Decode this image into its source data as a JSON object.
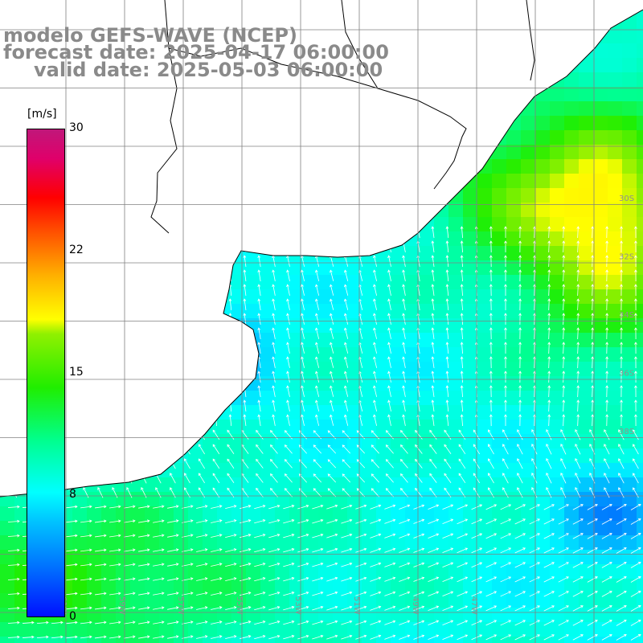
{
  "title": {
    "line1": "modelo GEFS-WAVE (NCEP)",
    "line2": "forecast date: 2025-04-17 06:00:00",
    "line3": "valid date: 2025-05-03 06:00:00"
  },
  "colorbar": {
    "unit": "[m/s]",
    "ticks": [
      "30",
      "22",
      "15",
      "8",
      "0"
    ],
    "tick_values": [
      30,
      22,
      15,
      8,
      0
    ],
    "range": [
      0,
      30
    ],
    "palette": [
      "#0010ff",
      "#00c8ff",
      "#00ffff",
      "#20ee00",
      "#ffff00",
      "#ff5000",
      "#ff0000",
      "#c0177a"
    ]
  },
  "map": {
    "variable": "wind speed",
    "grid": true,
    "lat_labels": [
      "30S",
      "32S",
      "34S",
      "36S",
      "38S"
    ],
    "lon_labels": [
      "61W",
      "59W",
      "57W",
      "55W",
      "53W",
      "51W",
      "49W",
      "47W"
    ],
    "land_color": "#ffffff",
    "coast_color": "#000000",
    "grid_color": "#808080",
    "arrow_color": "#ffffff"
  }
}
